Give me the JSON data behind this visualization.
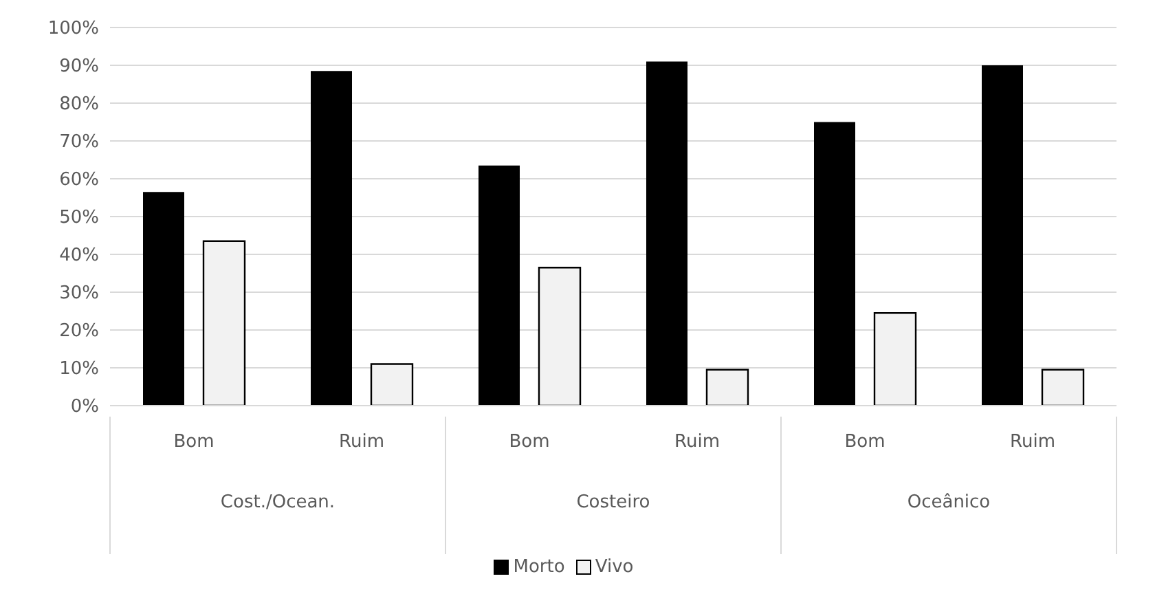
{
  "chart_data": {
    "type": "bar",
    "categories": [
      "Bom",
      "Ruim",
      "Bom",
      "Ruim",
      "Bom",
      "Ruim"
    ],
    "annotations": [
      "Cost./Ocean.",
      "Costeiro",
      "Oceânico"
    ],
    "series": [
      {
        "name": "Morto",
        "color": "#000000",
        "values": [
          56.5,
          88.5,
          63.5,
          91,
          75,
          90
        ]
      },
      {
        "name": "Vivo",
        "color": "#f2f2f2",
        "values": [
          43.5,
          11,
          36.5,
          9.5,
          24.5,
          9.5
        ]
      }
    ],
    "ylim": [
      0,
      100
    ],
    "yticks": [
      {
        "value": 0,
        "label": "0%"
      },
      {
        "value": 10,
        "label": "10%"
      },
      {
        "value": 20,
        "label": "20%"
      },
      {
        "value": 30,
        "label": "30%"
      },
      {
        "value": 40,
        "label": "40%"
      },
      {
        "value": 50,
        "label": "50%"
      },
      {
        "value": 60,
        "label": "60%"
      },
      {
        "value": 70,
        "label": "70%"
      },
      {
        "value": 80,
        "label": "80%"
      },
      {
        "value": 90,
        "label": "90%"
      },
      {
        "value": 100,
        "label": "100%"
      }
    ],
    "grid": "y",
    "legend": "bottom"
  }
}
